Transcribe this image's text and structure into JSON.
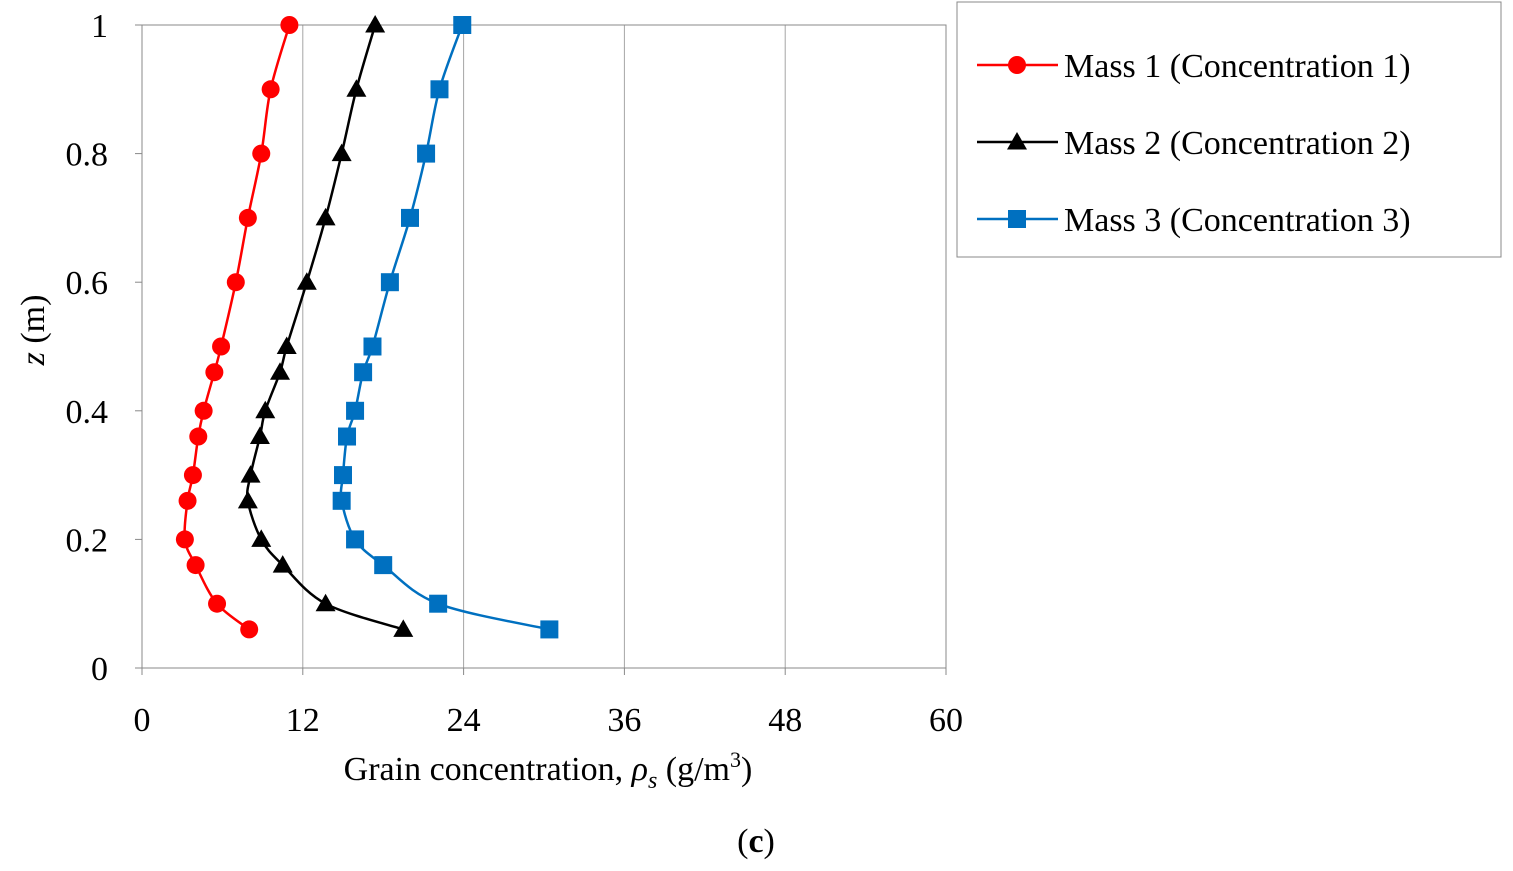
{
  "chart_data": {
    "type": "line",
    "title": "",
    "panel_label": {
      "open": "(",
      "letter": "c",
      "close": ")"
    },
    "xlabel": {
      "main": "Grain concentration, ",
      "symbol": "ρ",
      "sub": "s",
      "unit_pre": " (g/m",
      "sup": "3",
      "unit_post": ")"
    },
    "ylabel": {
      "var": "z",
      "unit": " (m)"
    },
    "xlim": [
      0,
      60
    ],
    "ylim": [
      0,
      1
    ],
    "xticks": [
      0,
      12,
      24,
      36,
      48,
      60
    ],
    "xtick_labels": [
      "0",
      "12",
      "24",
      "36",
      "48",
      "60"
    ],
    "yticks": [
      0,
      0.2,
      0.4,
      0.6,
      0.8,
      1
    ],
    "ytick_labels": [
      "0",
      "0.2",
      "0.4",
      "0.6",
      "0.8",
      "1"
    ],
    "grid": {
      "vertical": true,
      "horizontal": false
    },
    "legend_position": "right",
    "series": [
      {
        "name": "Mass 1 (Concentration 1)",
        "color": "#ff0000",
        "marker": "circle",
        "y": [
          0.06,
          0.1,
          0.16,
          0.2,
          0.26,
          0.3,
          0.36,
          0.4,
          0.46,
          0.5,
          0.6,
          0.7,
          0.8,
          0.9,
          1.0
        ],
        "x": [
          8.0,
          5.6,
          4.0,
          3.2,
          3.4,
          3.8,
          4.2,
          4.6,
          5.4,
          5.9,
          7.0,
          7.9,
          8.9,
          9.6,
          11.0
        ]
      },
      {
        "name": "Mass 2 (Concentration 2)",
        "color": "#000000",
        "marker": "triangle",
        "y": [
          0.06,
          0.1,
          0.16,
          0.2,
          0.26,
          0.3,
          0.36,
          0.4,
          0.46,
          0.5,
          0.6,
          0.7,
          0.8,
          0.9,
          1.0
        ],
        "x": [
          19.5,
          13.7,
          10.5,
          8.9,
          7.9,
          8.1,
          8.8,
          9.2,
          10.3,
          10.8,
          12.3,
          13.7,
          14.9,
          16.0,
          17.4
        ]
      },
      {
        "name": "Mass 3 (Concentration 3)",
        "color": "#0070c0",
        "marker": "square",
        "y": [
          0.06,
          0.1,
          0.16,
          0.2,
          0.26,
          0.3,
          0.36,
          0.4,
          0.46,
          0.5,
          0.6,
          0.7,
          0.8,
          0.9,
          1.0
        ],
        "x": [
          30.4,
          22.1,
          18.0,
          15.9,
          14.9,
          15.0,
          15.3,
          15.9,
          16.5,
          17.2,
          18.5,
          20.0,
          21.2,
          22.2,
          23.9
        ]
      }
    ]
  }
}
